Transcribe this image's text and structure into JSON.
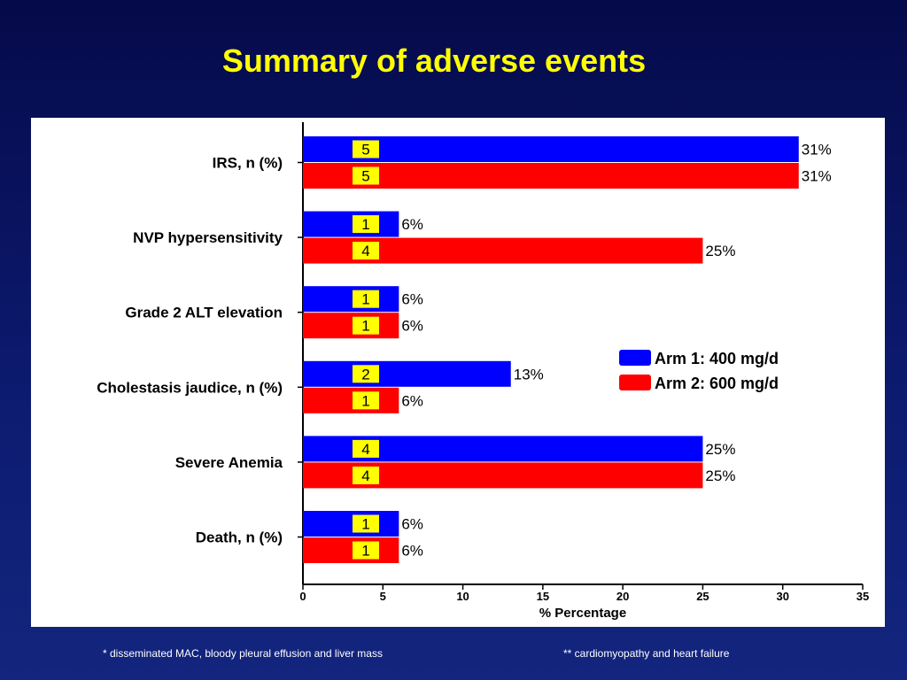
{
  "title": "Summary of adverse events",
  "footnotes": {
    "left": "* disseminated MAC, bloody pleural effusion and  liver mass",
    "right": "** cardiomyopathy and heart failure"
  },
  "colors": {
    "arm1": "#0000ff",
    "arm2": "#ff0000",
    "count_box": "#ffff00",
    "title": "#ffff00"
  },
  "chart_data": {
    "type": "bar",
    "orientation": "horizontal",
    "categories": [
      "IRS, n (%)",
      "NVP hypersensitivity",
      "Grade 2 ALT elevation",
      "Cholestasis jaudice, n (%)",
      "Severe Anemia",
      "Death, n (%)"
    ],
    "series": [
      {
        "name": "Arm 1: 400 mg/d",
        "values": [
          31,
          6,
          6,
          13,
          25,
          6
        ],
        "labels": [
          "31%",
          "6%",
          "6%",
          "13%",
          "25%",
          "6%"
        ],
        "counts": [
          "5",
          "1",
          "1",
          "2",
          "4",
          "1"
        ]
      },
      {
        "name": "Arm 2: 600 mg/d",
        "values": [
          31,
          25,
          6,
          6,
          25,
          6
        ],
        "labels": [
          "31%",
          "25%",
          "6%",
          "6%",
          "25%",
          "6%"
        ],
        "counts": [
          "5",
          "4",
          "1",
          "1",
          "4",
          "1"
        ]
      }
    ],
    "xlabel": "% Percentage",
    "xlim": [
      0,
      35
    ],
    "xticks": [
      "0",
      "5",
      "10",
      "15",
      "20",
      "25",
      "30",
      "35"
    ],
    "grid": false,
    "legend_position": "right"
  }
}
